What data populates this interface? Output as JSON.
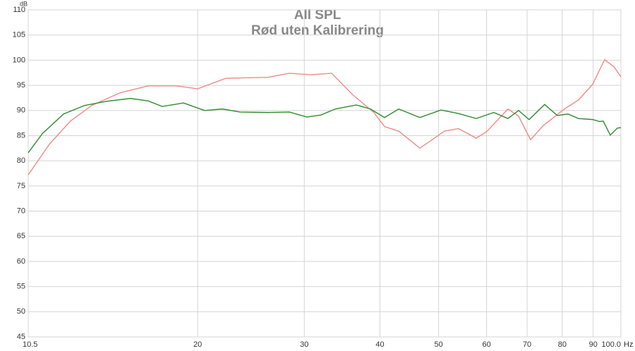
{
  "chart_data": {
    "type": "line",
    "title": "All SPL",
    "subtitle": "Rød uten Kalibrering",
    "ylabel": "dB",
    "xlabel": "Hz",
    "xscale": "log",
    "grid": true,
    "xlim": [
      10.5,
      100
    ],
    "ylim": [
      45,
      110
    ],
    "xticks": [
      10.5,
      20,
      30,
      40,
      50,
      60,
      70,
      80,
      90,
      {
        "value": 100,
        "label": "100.0"
      }
    ],
    "yticks": [
      45,
      50,
      55,
      60,
      65,
      70,
      75,
      80,
      85,
      90,
      95,
      100,
      105,
      110
    ],
    "series": [
      {
        "color": "#ef8a86",
        "x": [
          10.5,
          11.38,
          12.33,
          13.37,
          14.88,
          16.57,
          18.45,
          19.99,
          22.26,
          26.15,
          28.34,
          30.71,
          33.29,
          36.08,
          39.1,
          40.71,
          42.96,
          46.56,
          51.12,
          53.94,
          57.68,
          60.04,
          65.08,
          67.75,
          70.93,
          74.43,
          80.68,
          85.12,
          89.81,
          94.0,
          97.35,
          100
        ],
        "values": [
          77.2,
          83.3,
          87.9,
          91.0,
          93.5,
          94.9,
          94.9,
          94.3,
          96.4,
          96.6,
          97.4,
          97.1,
          97.4,
          93.1,
          89.6,
          86.8,
          85.9,
          82.5,
          85.9,
          86.4,
          84.5,
          85.8,
          90.3,
          88.9,
          84.2,
          87.0,
          90.3,
          92.1,
          95.2,
          100.1,
          98.7,
          96.7
        ]
      },
      {
        "color": "#2e8b2e",
        "x": [
          10.5,
          11.08,
          12.01,
          13.01,
          14.1,
          15.49,
          16.57,
          17.48,
          18.95,
          20.54,
          21.97,
          23.49,
          26.15,
          28.34,
          30.3,
          31.97,
          33.74,
          36.56,
          38.58,
          40.71,
          42.96,
          46.56,
          50.44,
          53.94,
          57.68,
          61.68,
          65.08,
          67.75,
          70.55,
          74.83,
          78.53,
          81.77,
          85.12,
          89.81,
          92.25,
          93.5,
          96.05,
          98.66,
          100
        ],
        "values": [
          81.6,
          85.4,
          89.3,
          91.0,
          91.8,
          92.4,
          91.9,
          90.8,
          91.5,
          90.0,
          90.3,
          89.7,
          89.6,
          89.7,
          88.7,
          89.1,
          90.3,
          91.1,
          90.3,
          88.6,
          90.3,
          88.6,
          90.1,
          89.4,
          88.4,
          89.6,
          88.4,
          90.0,
          88.2,
          91.2,
          89.0,
          89.3,
          88.4,
          88.2,
          87.8,
          87.9,
          85.1,
          86.5,
          86.6
        ]
      }
    ]
  }
}
